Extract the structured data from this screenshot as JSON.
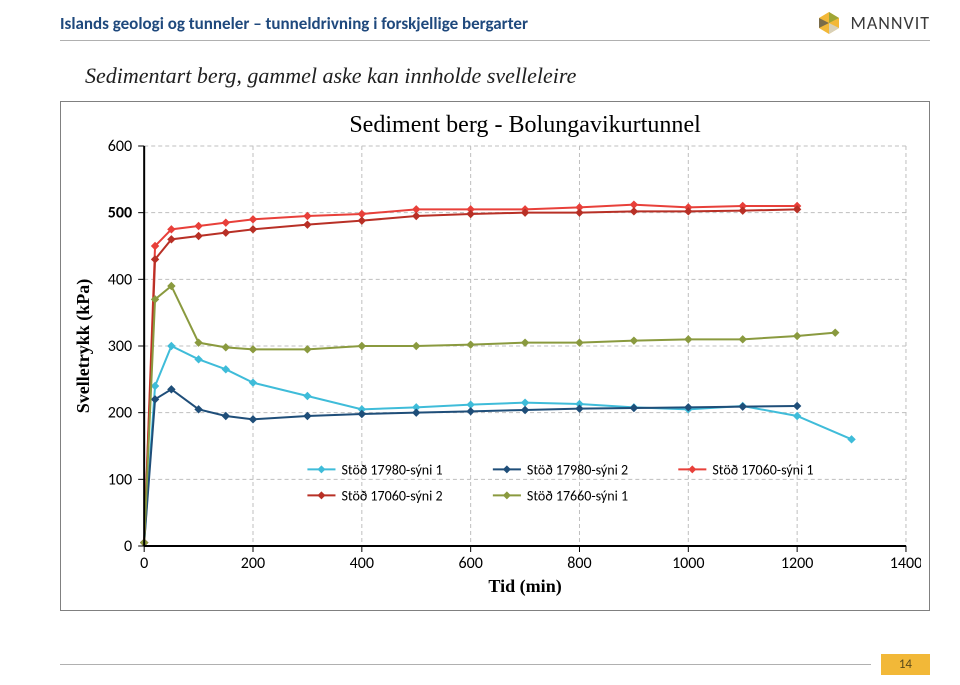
{
  "header": {
    "title": "Islands geologi og tunneler – tunneldrivning i forskjellige bergarter",
    "logo_text": "MANNVIT"
  },
  "subtitle": "Sedimentart berg, gammel aske kan innholde svelleleire",
  "chart": {
    "type": "line",
    "title": "Sediment berg - Bolungavikurtunnel",
    "title_fontsize": 24,
    "xlabel": "Tid (min)",
    "ylabel": "Svelletrykk (kPa)",
    "label_fontsize": 18,
    "xlim": [
      0,
      1400
    ],
    "ylim": [
      0,
      600
    ],
    "xtick_step": 200,
    "ytick_step": 100,
    "xticks": [
      0,
      200,
      400,
      600,
      800,
      1000,
      1200,
      1400
    ],
    "yticks": [
      0,
      100,
      200,
      300,
      400,
      600
    ],
    "ytick_500_bold": 500,
    "background_color": "#ffffff",
    "grid_color": "#bfbfbf",
    "axis_color": "#000000",
    "grid_dash": "4 3",
    "marker_size": 3.5,
    "line_width": 2,
    "series": [
      {
        "name": "Stöð 17980-sýni 1",
        "color": "#3fbcd9",
        "x": [
          0,
          20,
          50,
          100,
          150,
          200,
          300,
          400,
          500,
          600,
          700,
          800,
          900,
          1000,
          1100,
          1200,
          1300
        ],
        "y": [
          5,
          240,
          300,
          280,
          265,
          245,
          225,
          205,
          208,
          212,
          215,
          213,
          208,
          205,
          210,
          195,
          160
        ]
      },
      {
        "name": "Stöð 17980-sýni 2",
        "color": "#1f4e79",
        "x": [
          0,
          20,
          50,
          100,
          150,
          200,
          300,
          400,
          500,
          600,
          700,
          800,
          900,
          1000,
          1100,
          1200
        ],
        "y": [
          5,
          220,
          235,
          205,
          195,
          190,
          195,
          198,
          200,
          202,
          204,
          206,
          207,
          208,
          209,
          210
        ]
      },
      {
        "name": "Stöð 17060-sýni 1",
        "color": "#e8403a",
        "x": [
          0,
          20,
          50,
          100,
          150,
          200,
          300,
          400,
          500,
          600,
          700,
          800,
          900,
          1000,
          1100,
          1200
        ],
        "y": [
          5,
          450,
          475,
          480,
          485,
          490,
          495,
          498,
          505,
          505,
          505,
          508,
          512,
          508,
          510,
          510
        ]
      },
      {
        "name": "Stöð 17060-sýni 2",
        "color": "#b83026",
        "x": [
          0,
          20,
          50,
          100,
          150,
          200,
          300,
          400,
          500,
          600,
          700,
          800,
          900,
          1000,
          1100,
          1200
        ],
        "y": [
          5,
          430,
          460,
          465,
          470,
          475,
          482,
          488,
          495,
          498,
          500,
          500,
          502,
          502,
          503,
          505
        ]
      },
      {
        "name": "Stöð 17660-sýni 1",
        "color": "#8a9a3f",
        "x": [
          0,
          20,
          50,
          100,
          150,
          200,
          300,
          400,
          500,
          600,
          700,
          800,
          900,
          1000,
          1100,
          1200,
          1270
        ],
        "y": [
          5,
          370,
          390,
          305,
          298,
          295,
          295,
          300,
          300,
          302,
          305,
          305,
          308,
          310,
          310,
          315,
          320
        ]
      }
    ],
    "legend": {
      "position": "bottom-inside",
      "rows": [
        [
          "Stöð 17980-sýni 1",
          "Stöð 17980-sýni 2",
          "Stöð 17060-sýni 1"
        ],
        [
          "Stöð 17060-sýni 2",
          "Stöð 17660-sýni 1"
        ]
      ],
      "colors": {
        "Stöð 17980-sýni 1": "#3fbcd9",
        "Stöð 17980-sýni 2": "#1f4e79",
        "Stöð 17060-sýni 1": "#e8403a",
        "Stöð 17060-sýni 2": "#b83026",
        "Stöð 17660-sýni 1": "#8a9a3f"
      }
    }
  },
  "footer": {
    "page_number": "14"
  }
}
